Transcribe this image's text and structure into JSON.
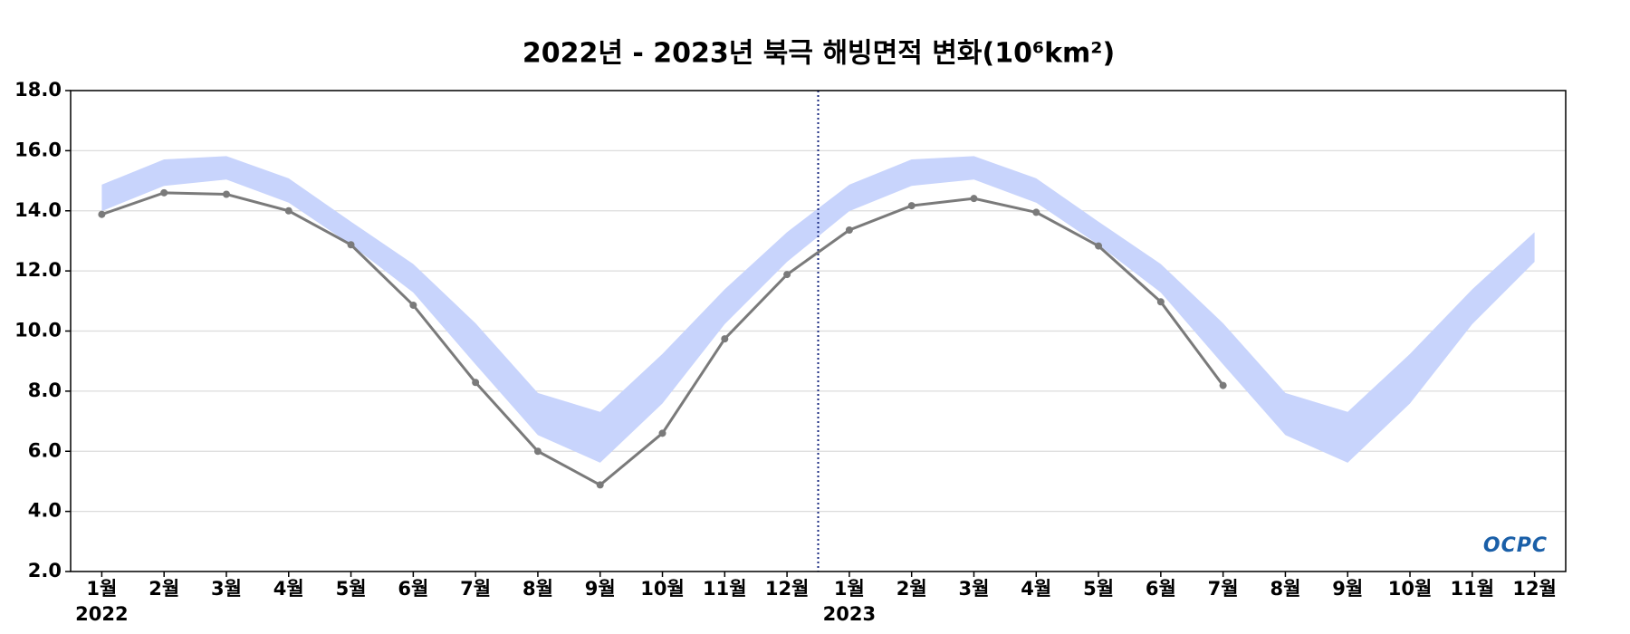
{
  "chart_data": {
    "type": "line",
    "title": "2022년 - 2023년 북극 해빙면적 변화(10⁶km²)",
    "categories": [
      "1월",
      "2월",
      "3월",
      "4월",
      "5월",
      "6월",
      "7월",
      "8월",
      "9월",
      "10월",
      "11월",
      "12월",
      "1월",
      "2월",
      "3월",
      "4월",
      "5월",
      "6월",
      "7월",
      "8월",
      "9월",
      "10월",
      "11월",
      "12월"
    ],
    "year_labels": [
      "2022",
      null,
      null,
      null,
      null,
      null,
      null,
      null,
      null,
      null,
      null,
      null,
      "2023",
      null,
      null,
      null,
      null,
      null,
      null,
      null,
      null,
      null,
      null,
      null
    ],
    "band": {
      "color": "#c8d4fc",
      "upper": [
        14.87,
        15.71,
        15.82,
        15.08,
        13.64,
        12.23,
        10.26,
        7.94,
        7.31,
        9.24,
        11.39,
        13.29,
        14.87,
        15.71,
        15.82,
        15.08,
        13.64,
        12.23,
        10.26,
        7.94,
        7.31,
        9.24,
        11.39,
        13.29
      ],
      "lower": [
        13.99,
        14.83,
        15.04,
        14.27,
        12.87,
        11.28,
        8.89,
        6.54,
        5.62,
        7.59,
        10.23,
        12.3,
        13.99,
        14.83,
        15.04,
        14.27,
        12.87,
        11.28,
        8.89,
        6.54,
        5.62,
        7.59,
        10.23,
        12.3
      ]
    },
    "series": [
      {
        "color": "#7a7a7a",
        "values": [
          13.88,
          14.6,
          14.55,
          14.0,
          12.87,
          10.86,
          8.29,
          6.0,
          4.88,
          6.6,
          9.74,
          11.88,
          13.36,
          14.17,
          14.41,
          13.95,
          12.83,
          10.97,
          8.19,
          null,
          null,
          null,
          null,
          null
        ]
      }
    ],
    "ylim": [
      2,
      18
    ],
    "yticks": [
      {
        "value": 2,
        "label": "2.0"
      },
      {
        "value": 4,
        "label": "4.0"
      },
      {
        "value": 6,
        "label": "6.0"
      },
      {
        "value": 8,
        "label": "8.0"
      },
      {
        "value": 10,
        "label": "10.0"
      },
      {
        "value": 12,
        "label": "12.0"
      },
      {
        "value": 14,
        "label": "14.0"
      },
      {
        "value": 16,
        "label": "16.0"
      },
      {
        "value": 18,
        "label": "18.0"
      }
    ],
    "grid": true,
    "logo": "OCPC"
  }
}
